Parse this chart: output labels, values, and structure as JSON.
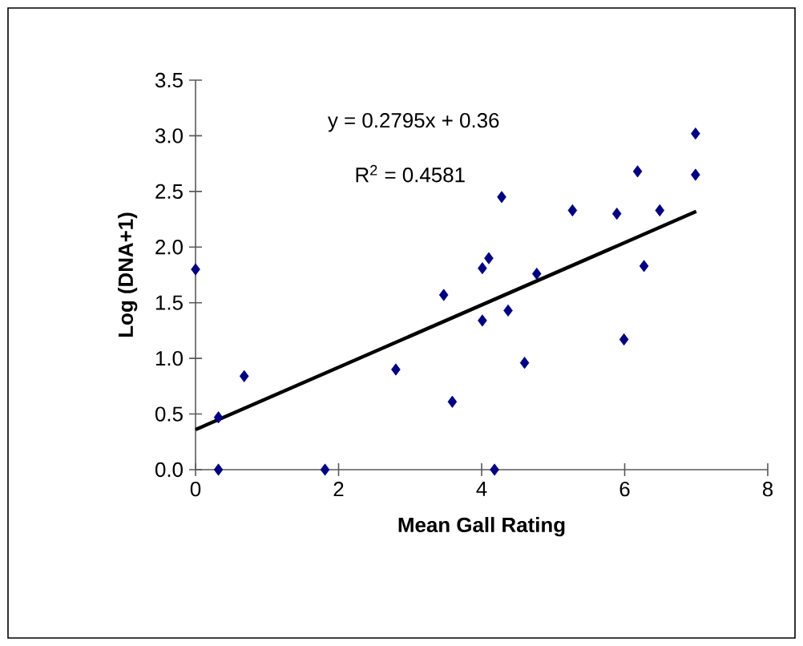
{
  "chart_data": {
    "type": "scatter",
    "xlabel": "Mean Gall Rating",
    "ylabel": "Log (DNA+1)",
    "xlim": [
      0,
      8
    ],
    "ylim": [
      0,
      3.5
    ],
    "xticks": [
      0,
      2,
      4,
      6,
      8
    ],
    "yticks": [
      {
        "value": 0,
        "label": "0.0"
      },
      {
        "value": 0.5,
        "label": "0.5"
      },
      {
        "value": 1,
        "label": "1.0"
      },
      {
        "value": 1.5,
        "label": "1.5"
      },
      {
        "value": 2,
        "label": "2.0"
      },
      {
        "value": 2.5,
        "label": "2.5"
      },
      {
        "value": 3,
        "label": "3.0"
      },
      {
        "value": 3.5,
        "label": "3.5"
      }
    ],
    "annotations": [
      "y = 0.2795x + 0.36",
      "R$^{2}$ = 0.4581"
    ],
    "series": [
      {
        "marker": "diamond",
        "color": "#000080",
        "x": [
          0,
          0.32,
          0.32,
          0.68,
          1.81,
          2.8,
          3.47,
          3.59,
          4.01,
          4.01,
          4.1,
          4.18,
          4.28,
          4.37,
          4.6,
          4.77,
          5.27,
          5.89,
          5.99,
          6.18,
          6.27,
          6.49,
          6.99,
          6.99
        ],
        "values": [
          1.8,
          0.47,
          0,
          0.84,
          0,
          0.9,
          1.57,
          0.61,
          1.34,
          1.81,
          1.9,
          0,
          2.45,
          1.43,
          0.96,
          1.76,
          2.33,
          2.3,
          1.17,
          2.68,
          1.83,
          2.33,
          3.02,
          2.65
        ]
      },
      {
        "type": "line",
        "color": "#000000",
        "x": [
          0,
          7
        ],
        "values": [
          0.36,
          2.32
        ]
      }
    ]
  }
}
